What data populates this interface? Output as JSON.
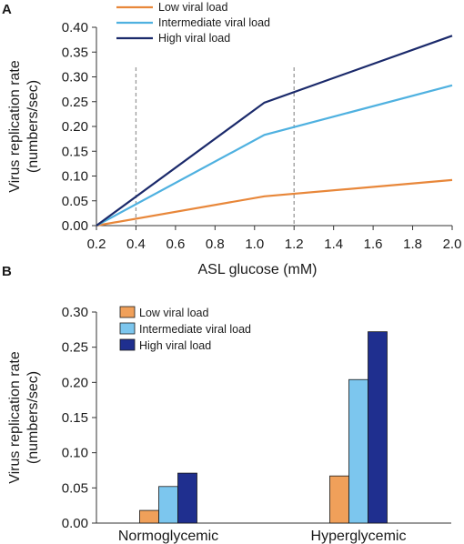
{
  "panels": {
    "a_letter": "A",
    "b_letter": "B"
  },
  "chart_data": [
    {
      "type": "line",
      "panel": "A",
      "xlabel": "ASL glucose (mM)",
      "ylabel_lines": [
        "Virus replication rate",
        "(numbers/sec)"
      ],
      "xlim": [
        0.2,
        2.0
      ],
      "ylim": [
        0,
        0.4
      ],
      "xticks": [
        "0.2",
        "0.4",
        "0.6",
        "0.8",
        "1.0",
        "1.2",
        "1.4",
        "1.6",
        "1.8",
        "2.0"
      ],
      "yticks": [
        "0.00",
        "0.05",
        "0.10",
        "0.15",
        "0.20",
        "0.25",
        "0.30",
        "0.35",
        "0.40"
      ],
      "reference_lines_x": [
        0.4,
        1.2
      ],
      "legend_position": "top-left",
      "grid": false,
      "series": [
        {
          "name": "Low viral load",
          "color": "#e8873a",
          "x": [
            0.2,
            1.05,
            2.0
          ],
          "y": [
            0.0,
            0.059,
            0.092
          ]
        },
        {
          "name": "Intermediate viral load",
          "color": "#4fb1e0",
          "x": [
            0.2,
            1.05,
            2.0
          ],
          "y": [
            0.0,
            0.183,
            0.283
          ]
        },
        {
          "name": "High viral load",
          "color": "#1b2a6b",
          "x": [
            0.2,
            1.05,
            2.0
          ],
          "y": [
            0.0,
            0.248,
            0.383
          ]
        }
      ]
    },
    {
      "type": "bar",
      "panel": "B",
      "ylabel_lines": [
        "Virus replication rate",
        "(numbers/sec)"
      ],
      "ylim": [
        0,
        0.3
      ],
      "yticks": [
        "0.00",
        "0.05",
        "0.10",
        "0.15",
        "0.20",
        "0.25",
        "0.30"
      ],
      "categories": [
        "Normoglycemic",
        "Hyperglycemic"
      ],
      "legend_position": "top-left",
      "grid": false,
      "series": [
        {
          "name": "Low viral load",
          "color": "#f0a05a",
          "values": [
            0.018,
            0.067
          ]
        },
        {
          "name": "Intermediate viral load",
          "color": "#7cc6ee",
          "values": [
            0.052,
            0.204
          ]
        },
        {
          "name": "High viral load",
          "color": "#1f2f8f",
          "values": [
            0.071,
            0.272
          ]
        }
      ]
    }
  ]
}
